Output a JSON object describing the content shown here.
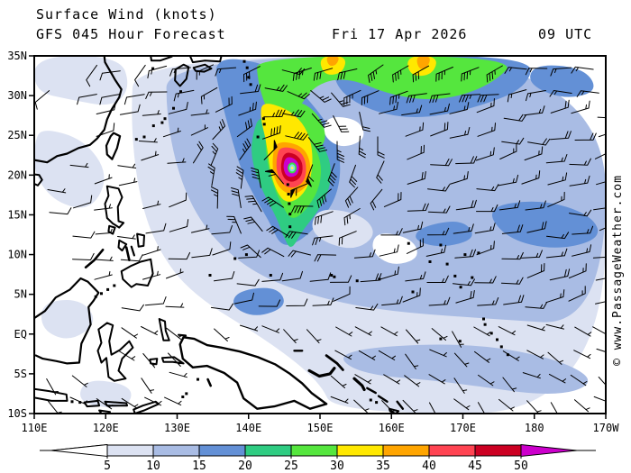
{
  "header": {
    "title": "Surface Wind (knots)",
    "model_line": "GFS 045 Hour Forecast",
    "date": "Fri 17 Apr 2026",
    "time": "09 UTC"
  },
  "watermark": "© www.PassageWeather.com",
  "map": {
    "lon_min": 110,
    "lon_max": 190,
    "lat_min": -10,
    "lat_max": 35,
    "lat_labels": [
      {
        "lat": 35,
        "label": "35N"
      },
      {
        "lat": 30,
        "label": "30N"
      },
      {
        "lat": 25,
        "label": "25N"
      },
      {
        "lat": 20,
        "label": "20N"
      },
      {
        "lat": 15,
        "label": "15N"
      },
      {
        "lat": 10,
        "label": "10N"
      },
      {
        "lat": 5,
        "label": "5N"
      },
      {
        "lat": 0,
        "label": "EQ"
      },
      {
        "lat": -5,
        "label": "5S"
      },
      {
        "lat": -10,
        "label": "10S"
      }
    ],
    "lon_labels": [
      {
        "lon": 110,
        "label": "110E"
      },
      {
        "lon": 120,
        "label": "120E"
      },
      {
        "lon": 130,
        "label": "130E"
      },
      {
        "lon": 140,
        "label": "140E"
      },
      {
        "lon": 150,
        "label": "150E"
      },
      {
        "lon": 160,
        "label": "160E"
      },
      {
        "lon": 170,
        "label": "170E"
      },
      {
        "lon": 180,
        "label": "180"
      },
      {
        "lon": 190,
        "label": "170W"
      }
    ]
  },
  "legend": {
    "tick_labels": [
      "5",
      "10",
      "15",
      "20",
      "25",
      "30",
      "35",
      "40",
      "45",
      "50"
    ],
    "units": "knots",
    "colors": {
      "calm": "#ffffff",
      "pale": "#dce2f2",
      "light": "#a9bce4",
      "medium": "#6390d6",
      "teal": "#2fcc82",
      "green": "#55e63e",
      "yellow": "#ffe800",
      "orange": "#ffa500",
      "red": "#ff4452",
      "darkred": "#cc0022",
      "magenta": "#cc00cc"
    },
    "bar_classes": [
      "pale",
      "light",
      "medium",
      "teal",
      "green",
      "yellow",
      "orange",
      "red",
      "darkred"
    ],
    "overflow_class": "magenta"
  },
  "storm": {
    "center_lon": 146.1,
    "center_lat": 20.9,
    "eye_colors": [
      "#3ddd4a",
      "#7fd9ee",
      "#ffe95d"
    ]
  },
  "wind_field": [
    {
      "cls": "pale",
      "pts": [
        [
          110,
          35
        ],
        [
          122,
          35
        ],
        [
          123.5,
          31
        ],
        [
          121,
          28.5
        ],
        [
          115,
          29.5
        ],
        [
          110,
          30.5
        ]
      ]
    },
    {
      "cls": "pale",
      "pts": [
        [
          124,
          35
        ],
        [
          190,
          35
        ],
        [
          190,
          -10
        ],
        [
          152,
          -10
        ],
        [
          150,
          -6
        ],
        [
          143,
          -1
        ],
        [
          132,
          5
        ],
        [
          127,
          11
        ],
        [
          124.5,
          18
        ],
        [
          123.5,
          27
        ]
      ]
    },
    {
      "cls": "pale",
      "pts": [
        [
          111,
          26
        ],
        [
          117,
          24.5
        ],
        [
          120.5,
          20
        ],
        [
          118,
          15.5
        ],
        [
          113,
          16.5
        ],
        [
          110,
          20
        ],
        [
          110,
          24
        ]
      ]
    },
    {
      "cls": "pale",
      "pts": [
        [
          111,
          4
        ],
        [
          116.5,
          4.5
        ],
        [
          119,
          1.5
        ],
        [
          115,
          -1
        ],
        [
          111,
          0.5
        ]
      ]
    },
    {
      "cls": "pale",
      "pts": [
        [
          117,
          -5.5
        ],
        [
          124,
          -6.5
        ],
        [
          123,
          -9.5
        ],
        [
          116,
          -8.8
        ]
      ]
    },
    {
      "cls": "light",
      "pts": [
        [
          128.5,
          35
        ],
        [
          190,
          35
        ],
        [
          190,
          1
        ],
        [
          172,
          2
        ],
        [
          158,
          3
        ],
        [
          148,
          5
        ],
        [
          140,
          8
        ],
        [
          134,
          13
        ],
        [
          130.5,
          19
        ],
        [
          128.5,
          27
        ]
      ]
    },
    {
      "cls": "light",
      "pts": [
        [
          152,
          -2
        ],
        [
          170,
          -1
        ],
        [
          183,
          -3
        ],
        [
          189,
          -6
        ],
        [
          183,
          -8
        ],
        [
          168,
          -6
        ],
        [
          155,
          -5
        ]
      ]
    },
    {
      "cls": "medium",
      "pts": [
        [
          135,
          35
        ],
        [
          143,
          34
        ],
        [
          147.5,
          30.5
        ],
        [
          151.5,
          26
        ],
        [
          153,
          22
        ],
        [
          152.5,
          17.5
        ],
        [
          150,
          14
        ],
        [
          147,
          11.5
        ],
        [
          144.5,
          11
        ],
        [
          143,
          14
        ],
        [
          141,
          17
        ],
        [
          139,
          20.5
        ],
        [
          137.5,
          25
        ],
        [
          136,
          30
        ]
      ]
    },
    {
      "cls": "medium",
      "pts": [
        [
          152,
          35
        ],
        [
          180,
          35
        ],
        [
          179,
          31
        ],
        [
          172,
          28.5
        ],
        [
          164,
          27
        ],
        [
          157,
          28
        ],
        [
          152,
          31
        ]
      ]
    },
    {
      "cls": "medium",
      "pts": [
        [
          180,
          34
        ],
        [
          187,
          33.5
        ],
        [
          189,
          30.5
        ],
        [
          184,
          29.5
        ],
        [
          179,
          31.5
        ]
      ]
    },
    {
      "cls": "medium",
      "pts": [
        [
          173,
          16
        ],
        [
          181,
          17
        ],
        [
          188,
          15
        ],
        [
          189.5,
          12
        ],
        [
          183,
          10.5
        ],
        [
          176,
          12
        ]
      ]
    },
    {
      "cls": "medium",
      "pts": [
        [
          164,
          13.5
        ],
        [
          170,
          14.5
        ],
        [
          172,
          12
        ],
        [
          167,
          10.8
        ],
        [
          163,
          11.8
        ]
      ]
    },
    {
      "cls": "medium",
      "pts": [
        [
          138.5,
          5.5
        ],
        [
          144,
          6
        ],
        [
          145.5,
          3.5
        ],
        [
          141,
          2
        ],
        [
          137.5,
          3.5
        ]
      ]
    },
    {
      "cls": "pale",
      "pts": [
        [
          150,
          16
        ],
        [
          156,
          15
        ],
        [
          158,
          12.5
        ],
        [
          155,
          10.5
        ],
        [
          150.5,
          11.5
        ],
        [
          148.5,
          13.5
        ]
      ]
    },
    {
      "cls": "calm",
      "pts": [
        [
          151,
          27.5
        ],
        [
          155.5,
          27
        ],
        [
          156.5,
          24.5
        ],
        [
          153,
          23.3
        ],
        [
          150.3,
          25
        ]
      ]
    },
    {
      "cls": "calm",
      "pts": [
        [
          158,
          13
        ],
        [
          163,
          12
        ],
        [
          164,
          9.5
        ],
        [
          160,
          8.5
        ],
        [
          157,
          10.5
        ]
      ]
    },
    {
      "cls": "teal",
      "pts": [
        [
          141.5,
          27.5
        ],
        [
          146,
          27
        ],
        [
          149.5,
          25
        ],
        [
          151.5,
          22
        ],
        [
          151.5,
          18.5
        ],
        [
          149.8,
          15.5
        ],
        [
          147.5,
          13
        ],
        [
          146,
          10.5
        ],
        [
          145,
          12
        ],
        [
          144,
          14.5
        ],
        [
          142.5,
          17
        ],
        [
          141,
          20
        ],
        [
          140.3,
          23
        ],
        [
          140.7,
          25.5
        ]
      ]
    },
    {
      "cls": "green",
      "pts": [
        [
          141,
          35
        ],
        [
          178,
          35
        ],
        [
          174,
          31.3
        ],
        [
          167,
          29.3
        ],
        [
          160,
          30
        ],
        [
          154,
          32.3
        ],
        [
          149.5,
          31.5
        ],
        [
          147,
          28.5
        ],
        [
          145.5,
          26
        ],
        [
          143.3,
          27
        ],
        [
          142,
          29.5
        ],
        [
          141.3,
          32
        ]
      ]
    },
    {
      "cls": "green",
      "pts": [
        [
          142.8,
          26.5
        ],
        [
          146.5,
          25.8
        ],
        [
          149.3,
          23.8
        ],
        [
          150.3,
          21
        ],
        [
          149.8,
          18
        ],
        [
          147.8,
          15.3
        ],
        [
          146,
          14.3
        ],
        [
          144.8,
          16
        ],
        [
          143.5,
          18.5
        ],
        [
          142.6,
          21.5
        ],
        [
          142.3,
          24.5
        ]
      ]
    },
    {
      "cls": "green",
      "pts": [
        [
          147,
          29.5
        ],
        [
          150,
          27.5
        ],
        [
          151,
          24.5
        ],
        [
          149.5,
          23
        ],
        [
          147.8,
          25.5
        ],
        [
          146.5,
          27.5
        ]
      ]
    },
    {
      "cls": "yellow",
      "pts": [
        [
          149.8,
          35
        ],
        [
          153.8,
          35
        ],
        [
          153.2,
          32.8
        ],
        [
          150.5,
          32.5
        ]
      ]
    },
    {
      "cls": "orange",
      "pts": [
        [
          150.8,
          35
        ],
        [
          152.8,
          35
        ],
        [
          152.3,
          33.8
        ],
        [
          151.2,
          33.7
        ]
      ]
    },
    {
      "cls": "yellow",
      "pts": [
        [
          162,
          35
        ],
        [
          166.6,
          35
        ],
        [
          165.8,
          32.6
        ],
        [
          162.6,
          32.4
        ]
      ]
    },
    {
      "cls": "orange",
      "pts": [
        [
          163.4,
          35
        ],
        [
          165.6,
          35
        ],
        [
          165,
          33.4
        ],
        [
          163.8,
          33.3
        ]
      ]
    },
    {
      "cls": "yellow",
      "pts": [
        [
          141.8,
          29.3
        ],
        [
          145.3,
          28.4
        ],
        [
          147.6,
          26.6
        ],
        [
          148.8,
          24.2
        ],
        [
          149,
          21.2
        ],
        [
          148.4,
          18.6
        ],
        [
          146.9,
          16.9
        ],
        [
          145.2,
          16.5
        ],
        [
          144,
          17.8
        ],
        [
          143.2,
          19.8
        ],
        [
          142.8,
          22
        ],
        [
          142.4,
          24.6
        ],
        [
          141.7,
          27
        ]
      ]
    },
    {
      "cls": "orange",
      "pts": [
        [
          143.9,
          24.3
        ],
        [
          147.1,
          23.9
        ],
        [
          148.6,
          22.2
        ],
        [
          148.7,
          19.3
        ],
        [
          147,
          17.6
        ],
        [
          145,
          17.7
        ],
        [
          143.5,
          19.5
        ],
        [
          143.3,
          22.3
        ]
      ]
    },
    {
      "cls": "red",
      "pts": [
        [
          144.4,
          23.6
        ],
        [
          146.9,
          23.3
        ],
        [
          148.1,
          21.8
        ],
        [
          148,
          19.4
        ],
        [
          146.5,
          18.3
        ],
        [
          144.9,
          18.6
        ],
        [
          143.9,
          20.3
        ],
        [
          143.9,
          22.2
        ]
      ]
    },
    {
      "cls": "darkred",
      "pts": [
        [
          144.9,
          22.9
        ],
        [
          146.6,
          22.7
        ],
        [
          147.6,
          21.6
        ],
        [
          147.5,
          19.9
        ],
        [
          146.4,
          19.1
        ],
        [
          145.1,
          19.3
        ],
        [
          144.4,
          20.8
        ]
      ]
    },
    {
      "cls": "magenta",
      "pts": [
        [
          145.2,
          22.3
        ],
        [
          146.3,
          22.2
        ],
        [
          147.1,
          21.4
        ],
        [
          147,
          20.2
        ],
        [
          146.2,
          19.7
        ],
        [
          145.2,
          19.9
        ],
        [
          144.8,
          21.1
        ]
      ]
    }
  ]
}
